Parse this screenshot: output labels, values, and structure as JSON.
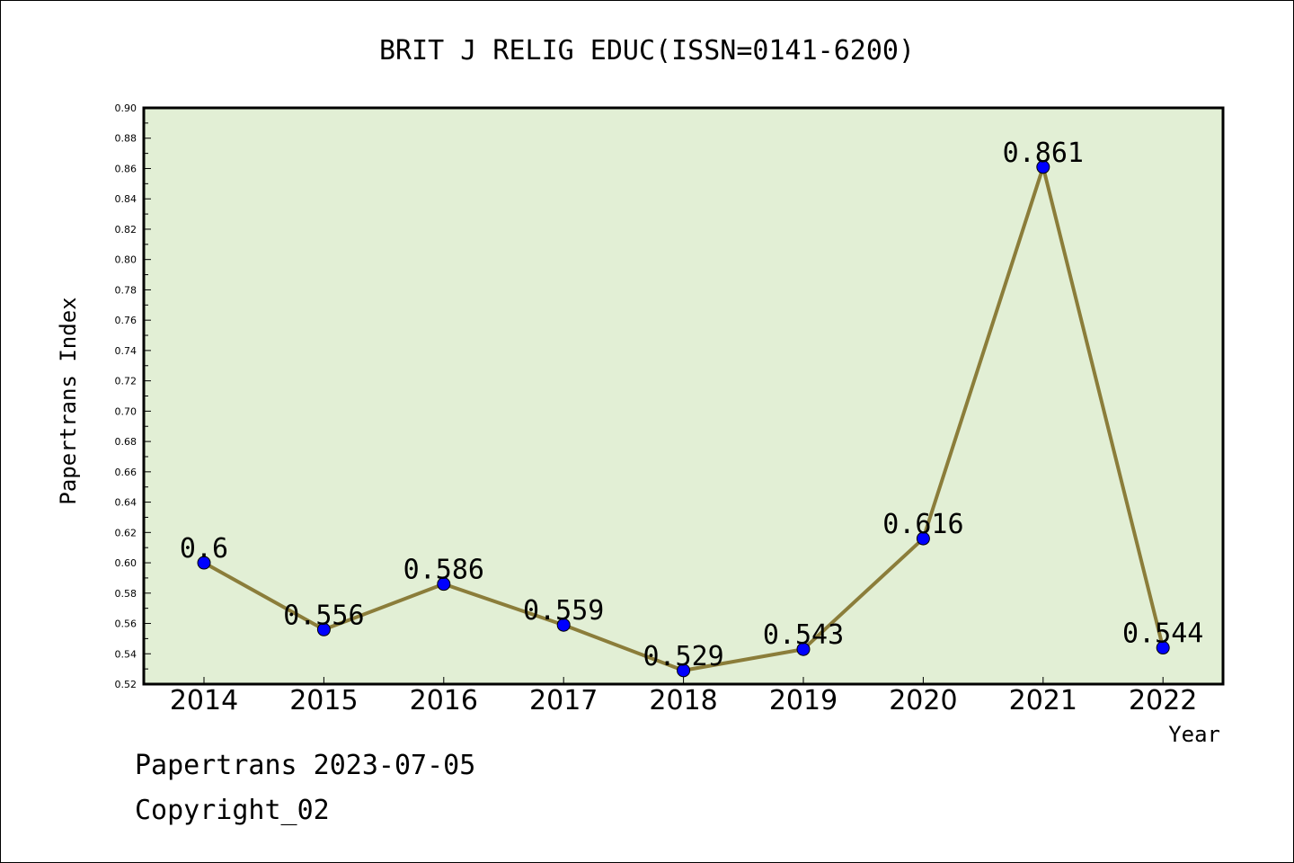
{
  "chart_data": {
    "type": "line",
    "title": "BRIT J RELIG EDUC(ISSN=0141-6200)",
    "xlabel": "Year",
    "ylabel": "Papertrans Index",
    "categories": [
      "2014",
      "2015",
      "2016",
      "2017",
      "2018",
      "2019",
      "2020",
      "2021",
      "2022"
    ],
    "values": [
      0.6,
      0.556,
      0.586,
      0.559,
      0.529,
      0.543,
      0.616,
      0.861,
      0.544
    ],
    "data_labels": [
      "0.6",
      "0.556",
      "0.586",
      "0.559",
      "0.529",
      "0.543",
      "0.616",
      "0.861",
      "0.544"
    ],
    "ylim": [
      0.52,
      0.9
    ],
    "yticks": [
      "0.52",
      "0.54",
      "0.56",
      "0.58",
      "0.60",
      "0.62",
      "0.64",
      "0.66",
      "0.68",
      "0.70",
      "0.72",
      "0.74",
      "0.76",
      "0.78",
      "0.80",
      "0.82",
      "0.84",
      "0.86",
      "0.88",
      "0.90"
    ],
    "grid": false,
    "colors": {
      "plot_background": "#e2efd5",
      "line": "#8b7d3a",
      "marker": "#0000ff"
    }
  },
  "footer": {
    "line1": "Papertrans 2023-07-05",
    "line2": "Copyright_02"
  }
}
